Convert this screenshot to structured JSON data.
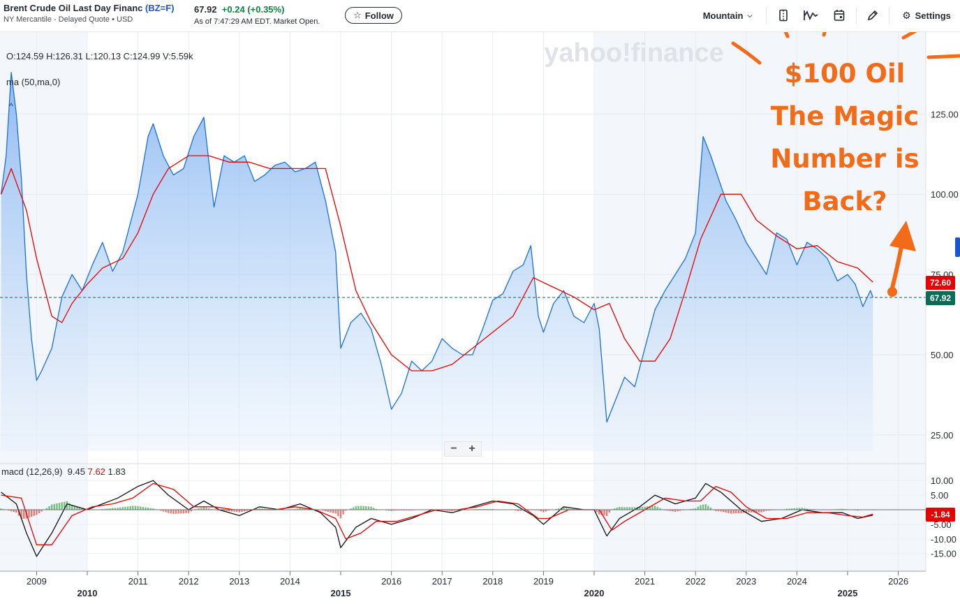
{
  "header": {
    "title": "Brent Crude Oil Last Day Financ",
    "symbol": "(BZ=F)",
    "subtitle": "NY Mercantile - Delayed Quote • USD",
    "price": "67.92",
    "change": "+0.24",
    "change_pct": "(+0.35%)",
    "as_of": "As of 7:47:29 AM EDT. Market Open.",
    "follow_label": "Follow"
  },
  "toolbar": {
    "chart_type_label": "Mountain",
    "settings_label": "Settings"
  },
  "watermark": "yahoo!finance",
  "ohlc": "O:124.59  H:126.31  L:120.13  C:124.99  V:5.59k",
  "indicators": {
    "ma_label": "ma (50,ma,0)",
    "macd_label": "macd (12,26,9)",
    "macd_value": "9.45",
    "macd_signal": "7.62",
    "macd_hist": "1.83"
  },
  "zoom": {
    "minus": "−",
    "plus": "+"
  },
  "annotation": {
    "lines": [
      "$100 Oil",
      "The Magic",
      "Number is",
      "Back?"
    ]
  },
  "price_tags": {
    "ma": "72.60",
    "last": "67.92",
    "macd": "-1.84"
  },
  "colors": {
    "accent": "#1a55d6",
    "price_line": "#1a6fe0",
    "ma_line": "#e60000",
    "annotation": "#f26b18",
    "up": "#008a3e",
    "down": "#e60000"
  },
  "chart_data": [
    {
      "type": "area",
      "y_axis_ticks": [
        "125.00",
        "100.00",
        "75.00",
        "50.00",
        "25.00"
      ],
      "x_axis_ticks": [
        "2009",
        "2010",
        "2011",
        "2012",
        "2013",
        "2014",
        "2015",
        "2016",
        "2017",
        "2018",
        "2019",
        "2020",
        "2021",
        "2022",
        "2023",
        "2024",
        "2025",
        "2026"
      ],
      "ylim": [
        20,
        140
      ],
      "series": [
        {
          "name": "BZ=F",
          "x": [
            2008.3,
            2008.4,
            2008.5,
            2008.6,
            2008.7,
            2008.8,
            2008.9,
            2009.0,
            2009.1,
            2009.3,
            2009.5,
            2009.7,
            2009.9,
            2010.1,
            2010.3,
            2010.5,
            2010.7,
            2010.9,
            2011.0,
            2011.2,
            2011.3,
            2011.5,
            2011.7,
            2011.9,
            2012.1,
            2012.3,
            2012.5,
            2012.7,
            2012.9,
            2013.1,
            2013.3,
            2013.5,
            2013.7,
            2013.9,
            2014.1,
            2014.3,
            2014.5,
            2014.7,
            2014.9,
            2015.0,
            2015.2,
            2015.4,
            2015.6,
            2015.8,
            2016.0,
            2016.2,
            2016.4,
            2016.6,
            2016.8,
            2017.0,
            2017.2,
            2017.4,
            2017.6,
            2017.8,
            2018.0,
            2018.2,
            2018.4,
            2018.6,
            2018.75,
            2018.9,
            2019.0,
            2019.2,
            2019.4,
            2019.6,
            2019.8,
            2020.0,
            2020.1,
            2020.25,
            2020.4,
            2020.6,
            2020.8,
            2021.0,
            2021.2,
            2021.4,
            2021.6,
            2021.8,
            2022.0,
            2022.15,
            2022.3,
            2022.45,
            2022.6,
            2022.8,
            2023.0,
            2023.2,
            2023.4,
            2023.6,
            2023.8,
            2024.0,
            2024.2,
            2024.4,
            2024.6,
            2024.8,
            2025.0,
            2025.15,
            2025.3,
            2025.45,
            2025.5
          ],
          "values": [
            100,
            112,
            138,
            125,
            105,
            75,
            55,
            42,
            45,
            52,
            68,
            75,
            70,
            78,
            85,
            76,
            82,
            94,
            100,
            118,
            122,
            112,
            106,
            108,
            118,
            124,
            96,
            112,
            110,
            112,
            104,
            106,
            109,
            110,
            107,
            108,
            110,
            98,
            82,
            52,
            60,
            63,
            58,
            47,
            33,
            38,
            48,
            45,
            48,
            55,
            52,
            50,
            50,
            58,
            67,
            69,
            76,
            78,
            84,
            62,
            57,
            66,
            70,
            62,
            60,
            66,
            58,
            29,
            35,
            43,
            40,
            52,
            64,
            70,
            75,
            80,
            88,
            118,
            112,
            105,
            98,
            92,
            85,
            80,
            75,
            88,
            86,
            78,
            85,
            83,
            80,
            73,
            75,
            72,
            65,
            70,
            67.92
          ]
        },
        {
          "name": "ma (50,ma,0)",
          "x": [
            2008.3,
            2008.5,
            2008.8,
            2009.0,
            2009.3,
            2009.5,
            2009.7,
            2010.0,
            2010.3,
            2010.7,
            2011.0,
            2011.3,
            2011.6,
            2012.0,
            2012.4,
            2012.8,
            2013.2,
            2013.6,
            2014.0,
            2014.4,
            2014.7,
            2015.0,
            2015.3,
            2015.6,
            2016.0,
            2016.4,
            2016.8,
            2017.2,
            2017.6,
            2018.0,
            2018.4,
            2018.8,
            2019.2,
            2019.6,
            2020.0,
            2020.3,
            2020.6,
            2020.9,
            2021.2,
            2021.5,
            2021.8,
            2022.1,
            2022.5,
            2022.9,
            2023.2,
            2023.6,
            2024.0,
            2024.4,
            2024.8,
            2025.2,
            2025.5
          ],
          "values": [
            100,
            108,
            95,
            80,
            62,
            60,
            66,
            72,
            77,
            80,
            88,
            100,
            108,
            112,
            112,
            110,
            110,
            108,
            108,
            108,
            108,
            90,
            70,
            60,
            50,
            45,
            45,
            47,
            52,
            57,
            62,
            74,
            71,
            68,
            64,
            66,
            55,
            48,
            48,
            55,
            70,
            86,
            100,
            100,
            92,
            87,
            83,
            84,
            79,
            77,
            72.6
          ]
        }
      ]
    },
    {
      "type": "line",
      "y_axis_ticks": [
        "10.00",
        "5.00",
        "-5.00",
        "-10.00",
        "-15.00"
      ],
      "ylim": [
        -17,
        12
      ],
      "series": [
        {
          "name": "macd",
          "x": [
            2008.3,
            2008.6,
            2008.8,
            2009.0,
            2009.3,
            2009.6,
            2010.0,
            2010.3,
            2010.6,
            2011.0,
            2011.3,
            2011.6,
            2012.0,
            2012.3,
            2012.6,
            2013.0,
            2013.4,
            2013.8,
            2014.2,
            2014.6,
            2014.9,
            2015.0,
            2015.3,
            2015.6,
            2016.0,
            2016.4,
            2016.8,
            2017.2,
            2017.6,
            2018.0,
            2018.4,
            2018.8,
            2019.0,
            2019.4,
            2019.8,
            2020.0,
            2020.25,
            2020.5,
            2020.9,
            2021.2,
            2021.6,
            2022.0,
            2022.2,
            2022.5,
            2022.9,
            2023.3,
            2023.7,
            2024.1,
            2024.5,
            2024.9,
            2025.2,
            2025.5
          ],
          "values": [
            6,
            2,
            -8,
            -16,
            -8,
            2,
            0,
            2,
            4,
            8,
            10,
            5,
            0,
            3,
            0,
            -2,
            1,
            0,
            2,
            -1,
            -6,
            -13,
            -6,
            -3,
            -5,
            -3,
            0,
            -1,
            1,
            3,
            2,
            -2,
            -5,
            1,
            0,
            0,
            -9,
            -3,
            1,
            5,
            2,
            4,
            9,
            6,
            0,
            -4,
            -3,
            0,
            -1,
            -1,
            -3,
            -1.84
          ]
        },
        {
          "name": "signal",
          "x": [
            2008.3,
            2008.7,
            2009.0,
            2009.3,
            2009.7,
            2010.1,
            2010.5,
            2010.9,
            2011.3,
            2011.7,
            2012.1,
            2012.5,
            2012.9,
            2013.3,
            2013.7,
            2014.1,
            2014.5,
            2014.9,
            2015.1,
            2015.4,
            2015.7,
            2016.1,
            2016.5,
            2016.9,
            2017.3,
            2017.7,
            2018.1,
            2018.5,
            2018.9,
            2019.1,
            2019.5,
            2019.9,
            2020.1,
            2020.35,
            2020.6,
            2021.0,
            2021.4,
            2021.8,
            2022.1,
            2022.4,
            2022.7,
            2023.0,
            2023.4,
            2023.8,
            2024.2,
            2024.6,
            2025.0,
            2025.3,
            2025.5
          ],
          "values": [
            5,
            4,
            -12,
            -12,
            -2,
            1,
            2,
            4,
            9,
            7,
            1,
            1,
            0,
            0,
            0,
            1,
            0,
            -3,
            -10,
            -8,
            -4,
            -4,
            -2,
            0,
            0,
            1,
            3,
            2,
            -3,
            -3,
            0,
            0,
            0,
            -7,
            -4,
            0,
            4,
            3,
            3,
            8,
            6,
            1,
            -3,
            -3,
            -1,
            -1,
            -2,
            -2.5,
            -1.5
          ]
        }
      ]
    }
  ]
}
